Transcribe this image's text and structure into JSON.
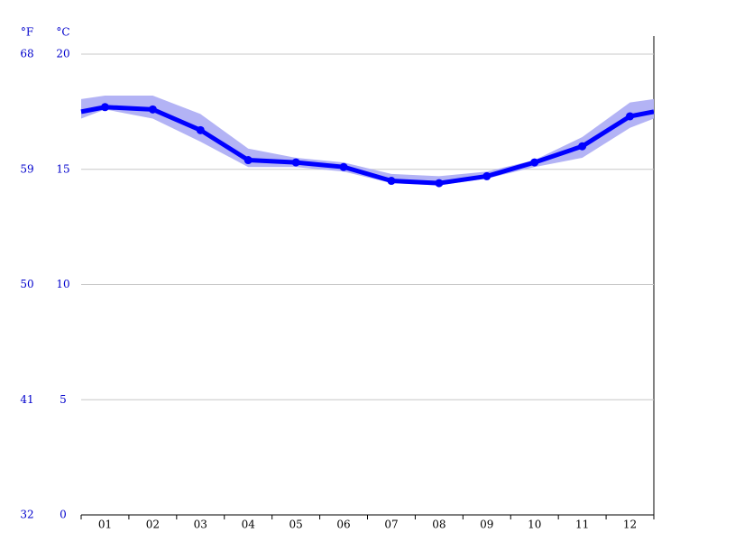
{
  "chart_data": {
    "type": "line",
    "y_unit": "°C",
    "y2_unit": "°F",
    "categories": [
      "01",
      "02",
      "03",
      "04",
      "05",
      "06",
      "07",
      "08",
      "09",
      "10",
      "11",
      "12"
    ],
    "series": [
      {
        "color": "#0000ff",
        "values": [
          17.7,
          17.6,
          16.7,
          15.4,
          15.3,
          15.1,
          14.5,
          14.4,
          14.7,
          15.3,
          16.0,
          17.3
        ]
      }
    ],
    "band": {
      "color": "#b3b3f5",
      "max": [
        18.2,
        18.2,
        17.4,
        15.9,
        15.5,
        15.3,
        14.8,
        14.7,
        14.9,
        15.4,
        16.4,
        17.9
      ],
      "min": [
        17.6,
        17.2,
        16.2,
        15.1,
        15.1,
        14.9,
        14.4,
        14.3,
        14.6,
        15.1,
        15.5,
        16.8
      ]
    },
    "ylim": [
      0,
      20
    ],
    "yticks": [
      0,
      5,
      10,
      15,
      20
    ],
    "y2lim": [
      32,
      68
    ],
    "y2ticks": [
      32,
      41,
      50,
      59,
      68
    ],
    "grid": true,
    "tick_color": "#0000cc"
  }
}
